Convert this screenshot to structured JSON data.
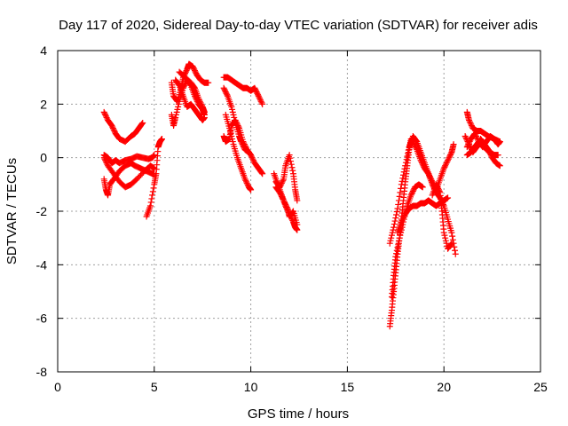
{
  "chart_data": {
    "type": "scatter",
    "title": "Day 117 of 2020, Sidereal Day-to-day VTEC variation (SDTVAR) for receiver adis",
    "xlabel": "GPS time / hours",
    "ylabel": "SDTVAR / TECUs",
    "xlim": [
      0,
      25
    ],
    "ylim": [
      -8,
      4
    ],
    "xticks": [
      0,
      5,
      10,
      15,
      20,
      25
    ],
    "yticks": [
      -8,
      -6,
      -4,
      -2,
      0,
      2,
      4
    ],
    "grid": true,
    "marker": "plus",
    "color": "#ff0000",
    "series": [
      {
        "x": [
          2.4,
          2.6,
          2.8,
          3.0,
          3.2,
          3.5,
          3.8,
          4.0,
          4.2,
          4.4
        ],
        "y": [
          1.7,
          1.4,
          1.2,
          0.9,
          0.7,
          0.6,
          0.8,
          0.9,
          1.1,
          1.3
        ]
      },
      {
        "x": [
          2.4,
          2.6,
          2.8,
          3.0,
          3.2,
          3.5,
          3.8,
          4.1,
          4.4,
          4.7,
          4.9,
          5.0
        ],
        "y": [
          0.1,
          0.0,
          -0.2,
          -0.1,
          -0.2,
          -0.1,
          -0.05,
          0.05,
          0.0,
          -0.05,
          0.0,
          0.1
        ]
      },
      {
        "x": [
          2.4,
          2.5,
          2.6,
          2.7,
          2.9,
          3.2,
          3.5,
          3.8,
          4.0,
          4.3,
          4.6,
          4.9,
          5.0
        ],
        "y": [
          -0.8,
          -1.2,
          -1.4,
          -1.0,
          -0.8,
          -0.5,
          -0.3,
          -0.2,
          -0.3,
          -0.4,
          -0.5,
          -0.6,
          -0.6
        ]
      },
      {
        "x": [
          2.4,
          2.6,
          2.9,
          3.2,
          3.5,
          3.8,
          4.1,
          4.5,
          4.8,
          5.0
        ],
        "y": [
          0.0,
          -0.3,
          -0.6,
          -0.9,
          -1.1,
          -1.0,
          -0.8,
          -0.5,
          -0.3,
          -0.4
        ]
      },
      {
        "x": [
          4.6,
          4.8,
          5.0,
          5.1,
          5.2,
          5.3,
          5.4
        ],
        "y": [
          -2.2,
          -1.8,
          -1.0,
          -0.6,
          0.4,
          0.6,
          0.7
        ]
      },
      {
        "x": [
          5.9,
          6.0,
          6.2,
          6.4,
          6.5,
          6.7,
          6.8,
          7.0,
          7.2,
          7.4,
          7.6,
          7.8
        ],
        "y": [
          2.8,
          2.3,
          2.1,
          2.6,
          3.0,
          3.3,
          3.5,
          3.4,
          3.1,
          2.9,
          2.8,
          2.8
        ]
      },
      {
        "x": [
          5.9,
          6.0,
          6.1,
          6.3,
          6.5,
          6.7,
          6.9,
          7.1,
          7.3,
          7.5,
          7.6
        ],
        "y": [
          1.6,
          1.2,
          1.5,
          2.1,
          2.6,
          2.9,
          2.7,
          2.3,
          2.0,
          1.8,
          1.6
        ]
      },
      {
        "x": [
          6.1,
          6.3,
          6.5,
          6.7,
          6.9,
          7.1,
          7.3,
          7.5,
          7.6
        ],
        "y": [
          2.9,
          2.7,
          2.3,
          1.9,
          2.0,
          1.8,
          1.6,
          1.4,
          1.5
        ]
      },
      {
        "x": [
          6.3,
          6.6,
          6.9,
          7.1,
          7.3,
          7.5,
          7.6
        ],
        "y": [
          3.2,
          3.0,
          2.8,
          2.6,
          2.2,
          1.9,
          1.7
        ]
      },
      {
        "x": [
          8.6,
          8.8,
          9.0,
          9.2,
          9.4,
          9.6,
          9.8,
          10.0,
          10.2,
          10.4,
          10.6
        ],
        "y": [
          3.0,
          3.0,
          2.9,
          2.8,
          2.7,
          2.6,
          2.6,
          2.5,
          2.6,
          2.3,
          2.0
        ]
      },
      {
        "x": [
          8.6,
          8.8,
          9.0,
          9.2,
          9.4,
          9.5,
          9.7,
          9.9
        ],
        "y": [
          2.6,
          2.3,
          1.9,
          1.3,
          0.8,
          0.6,
          0.3,
          0.2
        ]
      },
      {
        "x": [
          8.6,
          8.7,
          8.9,
          9.0,
          9.2,
          9.4,
          9.6,
          9.8,
          10.0,
          10.2,
          10.4,
          10.6
        ],
        "y": [
          0.8,
          0.6,
          0.7,
          1.2,
          1.4,
          1.1,
          0.6,
          0.3,
          0.1,
          -0.2,
          -0.4,
          -0.6
        ]
      },
      {
        "x": [
          8.7,
          8.9,
          9.1,
          9.3,
          9.5,
          9.7,
          9.9,
          10.0
        ],
        "y": [
          1.6,
          1.1,
          0.5,
          0.0,
          -0.4,
          -0.8,
          -1.1,
          -1.2
        ]
      },
      {
        "x": [
          11.2,
          11.4,
          11.6,
          11.8,
          12.0,
          12.2,
          12.3,
          12.4
        ],
        "y": [
          -0.6,
          -1.0,
          -1.4,
          -1.8,
          -2.1,
          -2.4,
          -2.6,
          -2.7
        ]
      },
      {
        "x": [
          11.3,
          11.5,
          11.7,
          11.8,
          12.0,
          12.2,
          12.3,
          12.4
        ],
        "y": [
          -0.9,
          -1.1,
          -0.8,
          -0.3,
          0.1,
          -0.6,
          -1.2,
          -1.6
        ]
      },
      {
        "x": [
          11.3,
          11.5,
          11.7,
          11.9,
          12.0,
          12.2,
          12.4
        ],
        "y": [
          -1.1,
          -1.3,
          -1.6,
          -1.9,
          -2.2,
          -2.0,
          -2.5
        ]
      },
      {
        "x": [
          17.2,
          17.3,
          17.4,
          17.5,
          17.6,
          17.7,
          17.8,
          17.9,
          18.0,
          18.1,
          18.2,
          18.3
        ],
        "y": [
          -6.3,
          -5.7,
          -5.0,
          -4.3,
          -3.6,
          -3.0,
          -2.3,
          -1.6,
          -0.9,
          -0.3,
          0.3,
          0.7
        ]
      },
      {
        "x": [
          17.3,
          17.4,
          17.5,
          17.7,
          17.9,
          18.1,
          18.3,
          18.5,
          18.7,
          18.9
        ],
        "y": [
          -5.2,
          -4.4,
          -3.7,
          -3.0,
          -2.4,
          -1.8,
          -1.4,
          -1.1,
          -1.0,
          -1.1
        ]
      },
      {
        "x": [
          17.2,
          17.4,
          17.6,
          17.8,
          18.0,
          18.2,
          18.4,
          18.6,
          18.8,
          19.0,
          19.2,
          19.4,
          19.6,
          19.8,
          20.0,
          20.2,
          20.4,
          20.6
        ],
        "y": [
          -3.2,
          -2.6,
          -1.9,
          -1.0,
          -0.3,
          0.4,
          0.8,
          0.6,
          0.2,
          -0.2,
          -0.6,
          -1.0,
          -1.3,
          -1.5,
          -1.8,
          -2.3,
          -2.8,
          -3.6
        ]
      },
      {
        "x": [
          17.6,
          17.8,
          18.0,
          18.2,
          18.4,
          18.6,
          18.8,
          19.0,
          19.2,
          19.4,
          19.6,
          19.8,
          20.0,
          20.2
        ],
        "y": [
          -2.8,
          -2.4,
          -2.1,
          -1.9,
          -1.8,
          -1.8,
          -1.7,
          -1.7,
          -1.6,
          -1.7,
          -1.8,
          -1.7,
          -1.6,
          -1.5
        ]
      },
      {
        "x": [
          18.4,
          18.6,
          18.8,
          19.0,
          19.2,
          19.4,
          19.6,
          19.8,
          20.0,
          20.2,
          20.4,
          20.5
        ],
        "y": [
          0.6,
          0.3,
          -0.1,
          -0.4,
          -0.6,
          -0.9,
          -1.2,
          -0.8,
          -0.4,
          -0.1,
          0.2,
          0.5
        ]
      },
      {
        "x": [
          19.4,
          19.6,
          19.8,
          19.9,
          20.0,
          20.2,
          20.4
        ],
        "y": [
          -1.4,
          -1.0,
          -1.3,
          -2.0,
          -2.8,
          -3.4,
          -3.2
        ]
      },
      {
        "x": [
          21.2,
          21.3,
          21.5,
          21.7,
          21.9,
          22.1,
          22.3,
          22.6,
          22.9
        ],
        "y": [
          1.7,
          1.4,
          1.1,
          1.0,
          1.0,
          0.9,
          0.8,
          0.7,
          0.6
        ]
      },
      {
        "x": [
          21.1,
          21.3,
          21.5,
          21.7,
          21.9,
          22.1,
          22.3,
          22.5,
          22.7,
          22.9
        ],
        "y": [
          0.8,
          0.5,
          0.2,
          0.4,
          0.7,
          0.5,
          0.3,
          0.0,
          -0.2,
          -0.3
        ]
      },
      {
        "x": [
          21.2,
          21.4,
          21.6,
          21.8,
          22.0,
          22.2,
          22.4,
          22.6,
          22.8,
          22.9
        ],
        "y": [
          0.4,
          0.7,
          0.9,
          0.6,
          0.4,
          0.6,
          0.8,
          0.7,
          0.5,
          0.6
        ]
      },
      {
        "x": [
          21.2,
          21.4,
          21.6,
          21.8,
          22.0,
          22.2,
          22.4,
          22.6,
          22.8
        ],
        "y": [
          0.1,
          0.2,
          0.4,
          0.6,
          0.5,
          0.3,
          0.2,
          0.1,
          0.1
        ]
      }
    ]
  }
}
